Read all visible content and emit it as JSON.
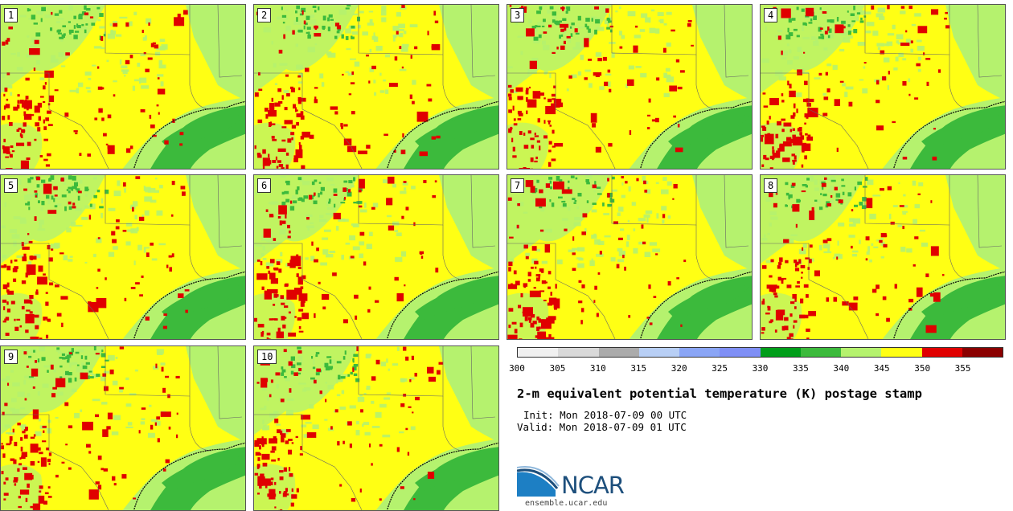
{
  "panels": [
    {
      "label": "1"
    },
    {
      "label": "2"
    },
    {
      "label": "3"
    },
    {
      "label": "4"
    },
    {
      "label": "5"
    },
    {
      "label": "6"
    },
    {
      "label": "7"
    },
    {
      "label": "8"
    },
    {
      "label": "9"
    },
    {
      "label": "10"
    }
  ],
  "colorbar": {
    "colors": [
      "#f0f0f0",
      "#d9d9d9",
      "#ababab",
      "#b8cff5",
      "#8aa5f5",
      "#7f8ff5",
      "#009e1a",
      "#3cba3c",
      "#b5f26e",
      "#ffff14",
      "#e00000",
      "#8b0000"
    ],
    "ticks": [
      "300",
      "305",
      "310",
      "315",
      "320",
      "325",
      "330",
      "335",
      "340",
      "345",
      "350",
      "355"
    ]
  },
  "map_colors": {
    "low": "#3cba3c",
    "mid": "#b5f26e",
    "high": "#ffff14",
    "peak": "#e00000",
    "coast": "#000000"
  },
  "title": "2-m equivalent potential temperature (K) postage stamp",
  "init": "Init: Mon 2018-07-09 00 UTC",
  "valid": "Valid: Mon 2018-07-09 01 UTC",
  "logo": {
    "text": "NCAR",
    "site": "ensemble.ucar.edu"
  }
}
